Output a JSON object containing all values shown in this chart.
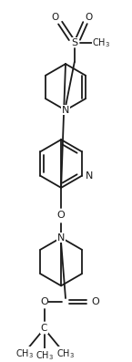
{
  "bg_color": "#ffffff",
  "line_color": "#1a1a1a",
  "line_width": 1.3,
  "figsize": [
    1.45,
    3.97
  ],
  "dpi": 100,
  "xlim": [
    0,
    145
  ],
  "ylim": [
    0,
    397
  ]
}
